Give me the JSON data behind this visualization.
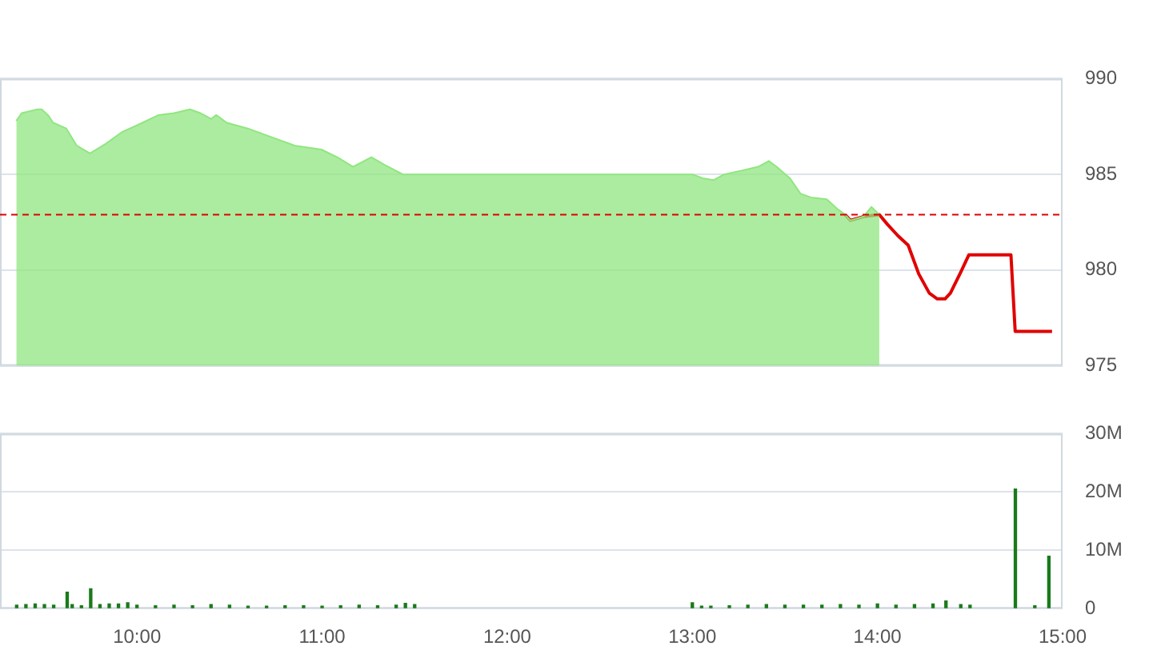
{
  "chart_data": [
    {
      "type": "area",
      "xlim": [
        9.26,
        15.0
      ],
      "ylim": [
        975,
        990
      ],
      "yticks": [
        975,
        980,
        985,
        990
      ],
      "grid": "y",
      "tick_labels": "y",
      "line_style": "solid",
      "marker": "none",
      "x": [
        9.348,
        9.377,
        9.419,
        9.462,
        9.485,
        9.519,
        9.547,
        9.618,
        9.675,
        9.746,
        9.831,
        9.917,
        10.03,
        10.116,
        10.2,
        10.286,
        10.343,
        10.4,
        10.428,
        10.485,
        10.598,
        10.74,
        10.854,
        10.996,
        11.082,
        11.167,
        11.266,
        11.337,
        11.437,
        11.536,
        13.0,
        13.057,
        13.114,
        13.171,
        13.27,
        13.356,
        13.413,
        13.455,
        13.527,
        13.584,
        13.64,
        13.726,
        13.783,
        13.825,
        13.854,
        13.925,
        13.967,
        14.01,
        14.053,
        14.11,
        14.166,
        14.223,
        14.28,
        14.323,
        14.365,
        14.394,
        14.45,
        14.494,
        14.721,
        14.744,
        14.943
      ],
      "series": [
        {
          "type": "area",
          "color": "#90e680",
          "values": [
            987.8,
            988.2,
            988.3,
            988.4,
            988.4,
            988.1,
            987.7,
            987.4,
            986.5,
            986.1,
            986.6,
            987.2,
            987.7,
            988.1,
            988.2,
            988.4,
            988.2,
            987.9,
            988.1,
            987.7,
            987.4,
            986.9,
            986.5,
            986.3,
            985.9,
            985.4,
            985.9,
            985.5,
            985.0,
            985.0,
            985.0,
            984.8,
            984.7,
            985.0,
            985.2,
            985.4,
            985.7,
            985.4,
            984.8,
            984.0,
            983.8,
            983.7,
            983.2,
            982.9,
            982.6,
            982.8,
            983.3,
            982.9,
            null,
            null,
            null,
            null,
            null,
            null,
            null,
            null,
            null,
            null,
            null,
            null,
            null
          ]
        },
        {
          "type": "line",
          "color": "#e00000",
          "values": [
            null,
            null,
            null,
            null,
            null,
            null,
            null,
            null,
            null,
            null,
            null,
            null,
            null,
            null,
            null,
            null,
            null,
            null,
            null,
            null,
            null,
            null,
            null,
            null,
            null,
            null,
            null,
            null,
            null,
            null,
            null,
            null,
            null,
            null,
            null,
            null,
            null,
            null,
            null,
            null,
            null,
            null,
            null,
            982.9,
            982.6,
            982.8,
            null,
            982.9,
            982.4,
            981.8,
            981.3,
            979.8,
            978.8,
            978.5,
            978.5,
            978.8,
            979.9,
            980.8,
            980.8,
            976.8,
            976.8
          ]
        }
      ],
      "ref_lines": [
        {
          "axis": "y",
          "value": 982.9,
          "color": "#e00000",
          "line_style": "dashed"
        }
      ]
    },
    {
      "type": "bar",
      "xlim": [
        9.26,
        15.0
      ],
      "xticks": [
        {
          "value": 10,
          "label": "10:00"
        },
        {
          "value": 11,
          "label": "11:00"
        },
        {
          "value": 12,
          "label": "12:00"
        },
        {
          "value": 13,
          "label": "13:00"
        },
        {
          "value": 14,
          "label": "14:00"
        },
        {
          "value": 15,
          "label": "15:00"
        }
      ],
      "ylim": [
        0,
        30
      ],
      "yticks": [
        0,
        {
          "value": 10,
          "label": "10M"
        },
        {
          "value": 20,
          "label": "20M"
        },
        {
          "value": 30,
          "label": "30M"
        }
      ],
      "grid": "y",
      "color": "#1a7a1a",
      "x": [
        9.35,
        9.4,
        9.45,
        9.5,
        9.55,
        9.623,
        9.65,
        9.7,
        9.75,
        9.8,
        9.85,
        9.9,
        9.95,
        10.0,
        10.1,
        10.2,
        10.3,
        10.4,
        10.5,
        10.6,
        10.7,
        10.8,
        10.9,
        11.0,
        11.1,
        11.2,
        11.3,
        11.4,
        11.45,
        11.5,
        13.0,
        13.05,
        13.1,
        13.2,
        13.3,
        13.4,
        13.5,
        13.6,
        13.7,
        13.8,
        13.9,
        14.0,
        14.1,
        14.2,
        14.3,
        14.37,
        14.45,
        14.5,
        14.745,
        14.85,
        14.926
      ],
      "values": [
        0.6,
        0.7,
        0.8,
        0.7,
        0.6,
        2.8,
        0.7,
        0.5,
        3.4,
        0.7,
        0.8,
        0.8,
        1.0,
        0.6,
        0.5,
        0.6,
        0.5,
        0.7,
        0.6,
        0.4,
        0.4,
        0.5,
        0.5,
        0.4,
        0.5,
        0.6,
        0.5,
        0.6,
        0.9,
        0.7,
        1.0,
        0.4,
        0.4,
        0.5,
        0.6,
        0.7,
        0.6,
        0.6,
        0.6,
        0.7,
        0.6,
        0.8,
        0.6,
        0.7,
        0.8,
        1.3,
        0.7,
        0.6,
        20.5,
        0.5,
        9.0
      ]
    }
  ]
}
